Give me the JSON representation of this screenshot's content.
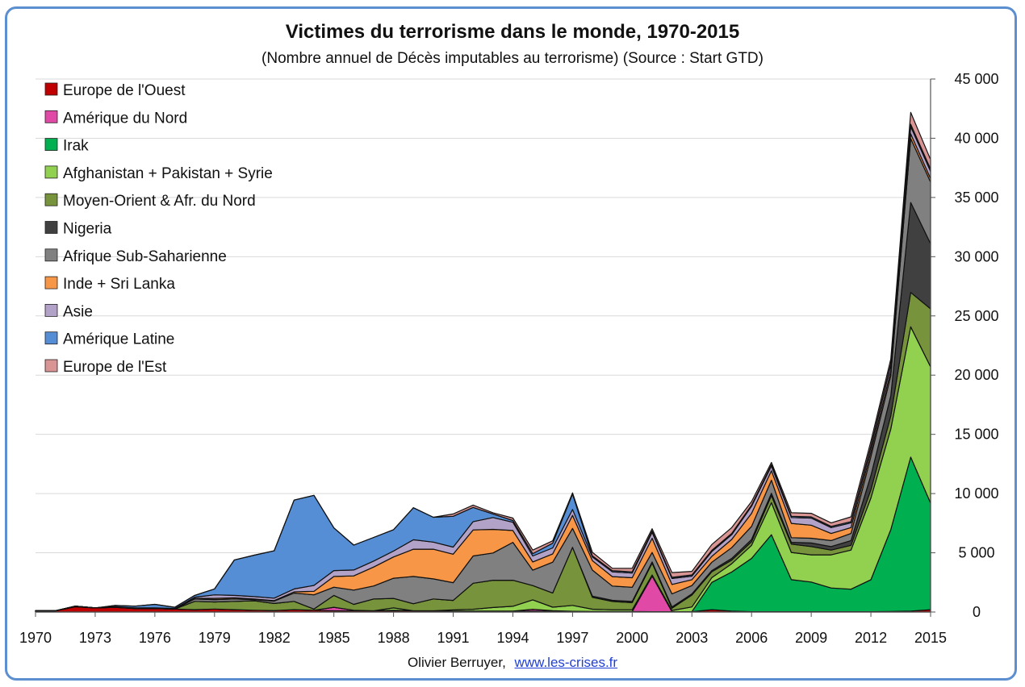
{
  "chart_data": {
    "type": "area",
    "stacked": true,
    "title": "Victimes du terrorisme dans le monde, 1970-2015",
    "subtitle": "(Nombre annuel de Décès imputables au terrorisme) (Source : Start GTD)",
    "credit_author": "Olivier Berruyer,",
    "credit_link": "www.les-crises.fr",
    "x": [
      1970,
      1971,
      1972,
      1973,
      1974,
      1975,
      1976,
      1977,
      1978,
      1979,
      1980,
      1981,
      1982,
      1983,
      1984,
      1985,
      1986,
      1987,
      1988,
      1989,
      1990,
      1991,
      1992,
      1993,
      1994,
      1995,
      1996,
      1997,
      1998,
      1999,
      2000,
      2001,
      2002,
      2003,
      2004,
      2005,
      2006,
      2007,
      2008,
      2009,
      2010,
      2011,
      2012,
      2013,
      2014,
      2015
    ],
    "x_tick_labels": [
      "1970",
      "1973",
      "1976",
      "1979",
      "1982",
      "1985",
      "1988",
      "1991",
      "1994",
      "1997",
      "2000",
      "2003",
      "2006",
      "2009",
      "2012",
      "2015"
    ],
    "y_tick_labels": [
      "0",
      "5 000",
      "10 000",
      "15 000",
      "20 000",
      "25 000",
      "30 000",
      "35 000",
      "40 000",
      "45 000"
    ],
    "ylim": [
      0,
      45000
    ],
    "xlim": [
      1970,
      2015
    ],
    "y_axis_position": "right",
    "legend_position": "top-left",
    "grid": true,
    "series": [
      {
        "name": "Europe de l'Ouest",
        "color": "#c00000",
        "values": [
          100,
          100,
          450,
          350,
          400,
          300,
          300,
          250,
          200,
          250,
          200,
          150,
          120,
          200,
          150,
          100,
          100,
          100,
          100,
          100,
          100,
          80,
          80,
          80,
          80,
          80,
          60,
          60,
          40,
          40,
          40,
          30,
          30,
          30,
          200,
          80,
          30,
          30,
          30,
          30,
          30,
          30,
          30,
          50,
          80,
          200
        ]
      },
      {
        "name": "Amérique du Nord",
        "color": "#e04aa6",
        "values": [
          0,
          0,
          0,
          0,
          0,
          0,
          0,
          0,
          0,
          0,
          0,
          0,
          0,
          0,
          0,
          300,
          50,
          0,
          50,
          0,
          0,
          0,
          0,
          0,
          0,
          150,
          50,
          0,
          0,
          0,
          0,
          3000,
          0,
          0,
          0,
          0,
          0,
          0,
          0,
          0,
          0,
          0,
          0,
          0,
          0,
          0
        ]
      },
      {
        "name": "Irak",
        "color": "#00b050",
        "values": [
          0,
          0,
          0,
          0,
          0,
          0,
          0,
          0,
          0,
          0,
          0,
          0,
          0,
          0,
          0,
          0,
          0,
          0,
          0,
          0,
          0,
          0,
          0,
          0,
          0,
          0,
          0,
          0,
          0,
          0,
          0,
          0,
          0,
          0,
          2300,
          3300,
          4500,
          6500,
          2700,
          2500,
          2000,
          1900,
          2700,
          6900,
          13000,
          9000
        ]
      },
      {
        "name": "Afghanistan + Pakistan + Syrie",
        "color": "#92d050",
        "values": [
          0,
          0,
          0,
          0,
          0,
          0,
          0,
          0,
          0,
          0,
          0,
          0,
          0,
          0,
          0,
          0,
          0,
          0,
          200,
          0,
          0,
          100,
          150,
          300,
          400,
          800,
          300,
          500,
          200,
          150,
          150,
          100,
          100,
          400,
          400,
          700,
          1100,
          2700,
          2300,
          2300,
          2800,
          3300,
          6900,
          8500,
          11000,
          11500
        ]
      },
      {
        "name": "Moyen-Orient & Afr. du Nord",
        "color": "#77933c",
        "values": [
          0,
          0,
          50,
          0,
          50,
          50,
          0,
          0,
          700,
          600,
          700,
          800,
          600,
          700,
          100,
          1000,
          500,
          1000,
          800,
          600,
          1000,
          800,
          2200,
          2300,
          2200,
          1200,
          1200,
          4900,
          1000,
          700,
          600,
          1000,
          200,
          1000,
          500,
          300,
          300,
          600,
          700,
          700,
          400,
          400,
          700,
          1100,
          2900,
          4900
        ]
      },
      {
        "name": "Nigeria",
        "color": "#404040",
        "values": [
          0,
          0,
          0,
          0,
          0,
          0,
          0,
          0,
          0,
          0,
          0,
          0,
          0,
          0,
          0,
          0,
          0,
          0,
          0,
          0,
          0,
          0,
          0,
          0,
          0,
          0,
          0,
          0,
          100,
          100,
          100,
          100,
          100,
          100,
          100,
          150,
          200,
          200,
          150,
          300,
          300,
          400,
          1200,
          1700,
          7600,
          5500
        ]
      },
      {
        "name": "Afrique Sub-Saharienne",
        "color": "#808080",
        "values": [
          0,
          0,
          0,
          0,
          0,
          0,
          0,
          0,
          200,
          200,
          200,
          100,
          200,
          700,
          1200,
          700,
          1200,
          1100,
          1700,
          2300,
          1700,
          1500,
          2300,
          2300,
          3200,
          1300,
          2600,
          1600,
          2200,
          1200,
          1200,
          800,
          1100,
          700,
          700,
          900,
          1100,
          1100,
          400,
          400,
          500,
          600,
          1600,
          1700,
          5400,
          5200
        ]
      },
      {
        "name": "Inde + Sri Lanka",
        "color": "#f79646",
        "values": [
          0,
          0,
          0,
          0,
          0,
          0,
          0,
          0,
          50,
          100,
          100,
          50,
          50,
          100,
          300,
          900,
          1200,
          1600,
          1800,
          2300,
          2500,
          2400,
          2200,
          2000,
          1000,
          700,
          700,
          1100,
          800,
          800,
          800,
          1200,
          800,
          500,
          500,
          700,
          1100,
          800,
          1200,
          1100,
          600,
          500,
          400,
          400,
          400,
          300
        ]
      },
      {
        "name": "Asie",
        "color": "#b3a2c7",
        "values": [
          0,
          0,
          0,
          0,
          0,
          0,
          50,
          50,
          100,
          300,
          200,
          200,
          200,
          250,
          500,
          500,
          500,
          500,
          500,
          800,
          600,
          600,
          700,
          1000,
          700,
          500,
          500,
          500,
          300,
          400,
          400,
          500,
          500,
          300,
          400,
          400,
          600,
          400,
          500,
          600,
          500,
          400,
          400,
          500,
          600,
          600
        ]
      },
      {
        "name": "Amérique Latine",
        "color": "#558ed5",
        "values": [
          0,
          0,
          0,
          0,
          100,
          150,
          300,
          100,
          150,
          500,
          3000,
          3500,
          4000,
          7500,
          7600,
          3600,
          2100,
          2000,
          1800,
          2700,
          2100,
          2600,
          1200,
          300,
          150,
          200,
          400,
          1300,
          100,
          100,
          100,
          100,
          100,
          100,
          100,
          100,
          100,
          100,
          100,
          100,
          100,
          100,
          100,
          100,
          200,
          200
        ]
      },
      {
        "name": "Europe de l'Est",
        "color": "#d99594",
        "values": [
          0,
          0,
          0,
          0,
          0,
          0,
          0,
          0,
          0,
          0,
          0,
          0,
          0,
          0,
          0,
          0,
          0,
          0,
          0,
          0,
          0,
          200,
          200,
          100,
          200,
          300,
          200,
          100,
          300,
          200,
          300,
          200,
          400,
          300,
          500,
          500,
          300,
          200,
          300,
          300,
          300,
          400,
          400,
          400,
          1000,
          800
        ]
      }
    ]
  }
}
